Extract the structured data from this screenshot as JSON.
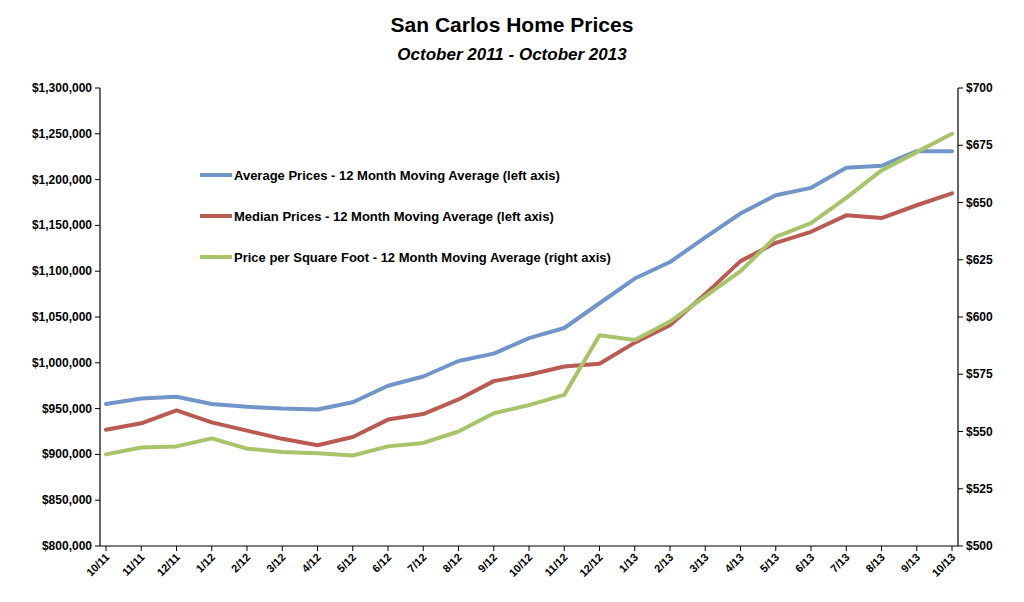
{
  "chart_data": {
    "type": "line",
    "title": "San Carlos Home Prices",
    "subtitle": "October 2011 - October 2013",
    "categories": [
      "10/11",
      "11/11",
      "12/11",
      "1/12",
      "2/12",
      "3/12",
      "4/12",
      "5/12",
      "6/12",
      "7/12",
      "8/12",
      "9/12",
      "10/12",
      "11/12",
      "12/12",
      "1/13",
      "2/13",
      "3/13",
      "4/13",
      "5/13",
      "6/13",
      "7/13",
      "8/13",
      "9/13",
      "10/13"
    ],
    "series": [
      {
        "name": "Average Prices - 12 Month Moving Average (left axis)",
        "color": "#7195c9",
        "axis": "y",
        "values": [
          955000,
          961000,
          963000,
          955000,
          952000,
          950000,
          949000,
          957000,
          975000,
          985000,
          1002000,
          1010000,
          1027000,
          1038000,
          1065000,
          1092000,
          1110000,
          1137000,
          1163000,
          1183000,
          1191000,
          1213000,
          1215000,
          1231000,
          1231000
        ]
      },
      {
        "name": "Median Prices - 12 Month Moving Average (left axis)",
        "color": "#b95b52",
        "axis": "y",
        "values": [
          927000,
          934000,
          948000,
          935000,
          926000,
          917000,
          910000,
          919000,
          938000,
          944000,
          960000,
          980000,
          987000,
          996000,
          999000,
          1022000,
          1041000,
          1075000,
          1111000,
          1131000,
          1143000,
          1161000,
          1158000,
          1172000,
          1185000
        ]
      },
      {
        "name": "Price per Square Foot - 12 Month Moving Average (right axis)",
        "color": "#a8c46a",
        "axis": "y2",
        "values": [
          540,
          543,
          543.5,
          547,
          542.5,
          541,
          540.5,
          539.5,
          543.5,
          545,
          550,
          558,
          561.5,
          566,
          592,
          590,
          598,
          609,
          620,
          635,
          641,
          652,
          664,
          672,
          680
        ]
      }
    ],
    "ylim": [
      800000,
      1300000
    ],
    "yticks": [
      {
        "value": 800000,
        "label": "$800,000"
      },
      {
        "value": 850000,
        "label": "$850,000"
      },
      {
        "value": 900000,
        "label": "$900,000"
      },
      {
        "value": 950000,
        "label": "$950,000"
      },
      {
        "value": 1000000,
        "label": "$1,000,000"
      },
      {
        "value": 1050000,
        "label": "$1,050,000"
      },
      {
        "value": 1100000,
        "label": "$1,100,000"
      },
      {
        "value": 1150000,
        "label": "$1,150,000"
      },
      {
        "value": 1200000,
        "label": "$1,200,000"
      },
      {
        "value": 1250000,
        "label": "$1,250,000"
      },
      {
        "value": 1300000,
        "label": "$1,300,000"
      }
    ],
    "y2lim": [
      500,
      700
    ],
    "y2ticks": [
      {
        "value": 500,
        "label": "$500"
      },
      {
        "value": 525,
        "label": "$525"
      },
      {
        "value": 550,
        "label": "$550"
      },
      {
        "value": 575,
        "label": "$575"
      },
      {
        "value": 600,
        "label": "$600"
      },
      {
        "value": 625,
        "label": "$625"
      },
      {
        "value": 650,
        "label": "$650"
      },
      {
        "value": 675,
        "label": "$675"
      },
      {
        "value": 700,
        "label": "$700"
      }
    ],
    "grid": false,
    "legend": "upper left"
  }
}
